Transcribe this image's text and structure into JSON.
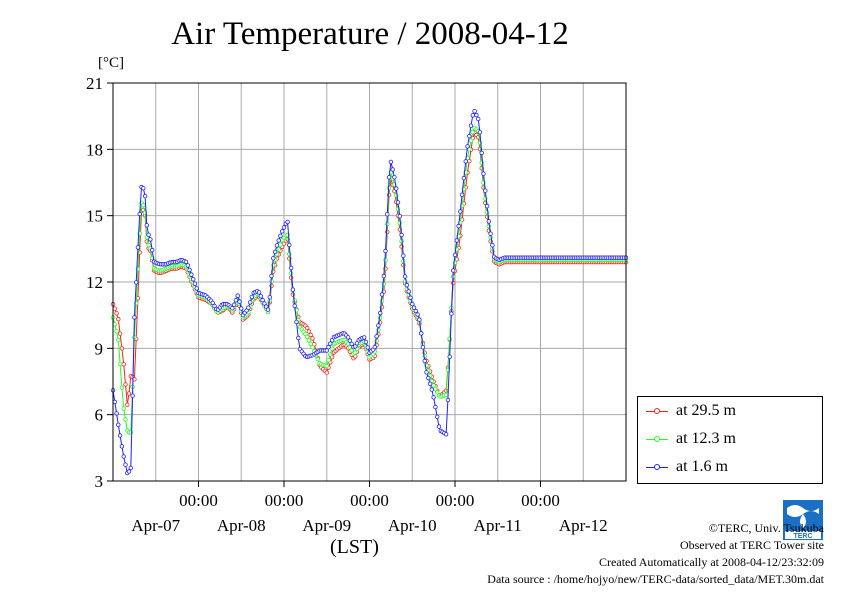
{
  "title": "Air Temperature / 2008-04-12",
  "unit_label": "[°C]",
  "xlabel": "(LST)",
  "legend": [
    {
      "label": "at 29.5 m",
      "color": "#ff2020"
    },
    {
      "label": "at 12.3 m",
      "color": "#20ff20"
    },
    {
      "label": "at 1.6 m",
      "color": "#2020ff"
    }
  ],
  "footer": {
    "copyright": "©TERC, Univ. Tsukuba",
    "observed": "Observed at TERC Tower site",
    "created": "Created Automatically at 2008-04-12/23:32:09",
    "source": "Data source : /home/hojyo/new/TERC-data/sorted_data/MET.30m.dat"
  },
  "logo_text": "TERC",
  "chart_data": {
    "type": "line",
    "title": "Air Temperature / 2008-04-12",
    "ylabel": "[°C]",
    "xlabel": "(LST)",
    "ylim": [
      3,
      21
    ],
    "yticks": [
      3,
      6,
      9,
      12,
      15,
      18,
      21
    ],
    "xlim": [
      0,
      6
    ],
    "x_unit": "days from 2008-04-06 12:00 LST",
    "time_tick_label": "00:00",
    "xticks": [
      {
        "x": 1.0,
        "time": "00:00",
        "date": "Apr-07"
      },
      {
        "x": 2.0,
        "time": "00:00",
        "date": "Apr-08"
      },
      {
        "x": 3.0,
        "time": "00:00",
        "date": "Apr-09"
      },
      {
        "x": 4.0,
        "time": "00:00",
        "date": "Apr-10"
      },
      {
        "x": 5.0,
        "time": "00:00",
        "date": "Apr-11"
      }
    ],
    "date_labels": [
      "Apr-07",
      "Apr-08",
      "Apr-09",
      "Apr-10",
      "Apr-11",
      "Apr-12"
    ],
    "grid": true,
    "legend_position": "right-bottom",
    "anchors_x": [
      0,
      0.06,
      0.12,
      0.17,
      0.21,
      0.25,
      0.3,
      0.33,
      0.37,
      0.4,
      0.44,
      0.48,
      0.55,
      0.62,
      0.68,
      0.74,
      0.8,
      0.86,
      0.92,
      1.0,
      1.08,
      1.16,
      1.22,
      1.28,
      1.34,
      1.4,
      1.46,
      1.52,
      1.58,
      1.64,
      1.7,
      1.76,
      1.82,
      1.87,
      1.92,
      1.98,
      2.04,
      2.1,
      2.18,
      2.26,
      2.34,
      2.42,
      2.5,
      2.58,
      2.64,
      2.7,
      2.75,
      2.82,
      2.88,
      2.94,
      3.0,
      3.06,
      3.12,
      3.18,
      3.24,
      3.3,
      3.36,
      3.42,
      3.5,
      3.58,
      3.66,
      3.74,
      3.82,
      3.9,
      3.98,
      4.06,
      4.14,
      4.22,
      4.28,
      4.34,
      4.4,
      4.46,
      4.52,
      4.58,
      4.64,
      4.7,
      4.76,
      4.82,
      4.88,
      4.94,
      5.0,
      5.06,
      5.1,
      5.14,
      5.18,
      5.22,
      5.26,
      5.3,
      5.36,
      5.42,
      5.48,
      5.54,
      5.6,
      5.66,
      5.72,
      5.78,
      5.84,
      5.9,
      5.96,
      6.0
    ],
    "series": [
      {
        "name": "at 29.5 m",
        "color": "#ff2020",
        "values": [
          11.0,
          10.4,
          8.5,
          6.3,
          7.8,
          7.6,
          12.0,
          15.2,
          15.3,
          13.6,
          13.4,
          12.5,
          12.4,
          12.5,
          12.6,
          12.6,
          12.7,
          12.6,
          12.0,
          11.3,
          11.2,
          11.0,
          10.6,
          10.7,
          10.9,
          10.6,
          11.2,
          10.3,
          10.5,
          11.2,
          11.4,
          11.0,
          10.6,
          12.4,
          13.1,
          13.6,
          14.0,
          11.5,
          10.2,
          10.0,
          9.4,
          8.2,
          7.9,
          8.8,
          9.0,
          9.2,
          9.0,
          8.5,
          9.1,
          9.2,
          8.5,
          8.6,
          10.0,
          12.0,
          16.8,
          16.0,
          14.2,
          11.8,
          10.8,
          10.2,
          8.5,
          7.6,
          6.8,
          7.1,
          12.0,
          14.0,
          16.8,
          18.8,
          18.5,
          16.0,
          14.2,
          12.9,
          12.8,
          12.9,
          12.9,
          12.9,
          12.9,
          12.9,
          12.9,
          12.9,
          12.9,
          12.9,
          12.9,
          12.9,
          12.9,
          12.9,
          12.9,
          12.9,
          12.9,
          12.9,
          12.9,
          12.9,
          12.9,
          12.9,
          12.9,
          12.9,
          12.9,
          12.9,
          12.9,
          12.9
        ]
      },
      {
        "name": "at 12.3 m",
        "color": "#20ff20",
        "values": [
          10.4,
          9.5,
          6.4,
          5.2,
          5.2,
          9.5,
          13.2,
          15.6,
          15.4,
          13.8,
          13.5,
          12.6,
          12.5,
          12.6,
          12.7,
          12.7,
          12.8,
          12.7,
          12.1,
          11.4,
          11.3,
          11.0,
          10.6,
          10.8,
          10.9,
          10.7,
          11.3,
          10.4,
          10.6,
          11.3,
          11.5,
          11.0,
          10.6,
          12.7,
          13.3,
          13.9,
          14.2,
          11.7,
          10.0,
          9.6,
          9.0,
          8.3,
          8.2,
          9.2,
          9.3,
          9.4,
          9.2,
          8.7,
          9.2,
          9.3,
          8.6,
          8.8,
          10.2,
          12.4,
          17.1,
          16.3,
          14.5,
          11.9,
          10.9,
          10.3,
          8.3,
          7.4,
          6.8,
          6.9,
          12.3,
          14.6,
          17.5,
          19.0,
          18.8,
          16.2,
          14.4,
          13.0,
          12.9,
          13.0,
          13.0,
          13.0,
          13.0,
          13.0,
          13.0,
          13.0,
          13.0,
          13.0,
          13.0,
          13.0,
          13.0,
          13.0,
          13.0,
          13.0,
          13.0,
          13.0,
          13.0,
          13.0,
          13.0,
          13.0,
          13.0,
          13.0,
          13.0,
          13.0,
          13.0,
          13.0
        ]
      },
      {
        "name": "at 1.6 m",
        "color": "#2020ff",
        "values": [
          7.1,
          5.6,
          4.2,
          3.3,
          3.6,
          10.4,
          14.2,
          16.3,
          16.2,
          14.3,
          13.9,
          12.9,
          12.8,
          12.8,
          12.9,
          12.9,
          13.0,
          12.9,
          12.3,
          11.5,
          11.4,
          11.1,
          10.7,
          11.0,
          11.0,
          10.8,
          11.4,
          10.5,
          10.8,
          11.5,
          11.6,
          11.1,
          10.7,
          13.0,
          13.7,
          14.3,
          14.8,
          11.8,
          9.0,
          8.6,
          8.7,
          8.9,
          8.9,
          9.5,
          9.6,
          9.7,
          9.5,
          9.0,
          9.4,
          9.5,
          8.8,
          9.0,
          10.4,
          12.8,
          17.6,
          16.6,
          14.8,
          12.1,
          11.0,
          10.4,
          8.0,
          7.0,
          5.3,
          5.1,
          12.6,
          15.1,
          18.0,
          19.8,
          19.3,
          16.6,
          14.6,
          13.1,
          13.0,
          13.1,
          13.1,
          13.1,
          13.1,
          13.1,
          13.1,
          13.1,
          13.1,
          13.1,
          13.1,
          13.1,
          13.1,
          13.1,
          13.1,
          13.1,
          13.1,
          13.1,
          13.1,
          13.1,
          13.1,
          13.1,
          13.1,
          13.1,
          13.1,
          13.1,
          13.1,
          13.1
        ]
      }
    ]
  }
}
